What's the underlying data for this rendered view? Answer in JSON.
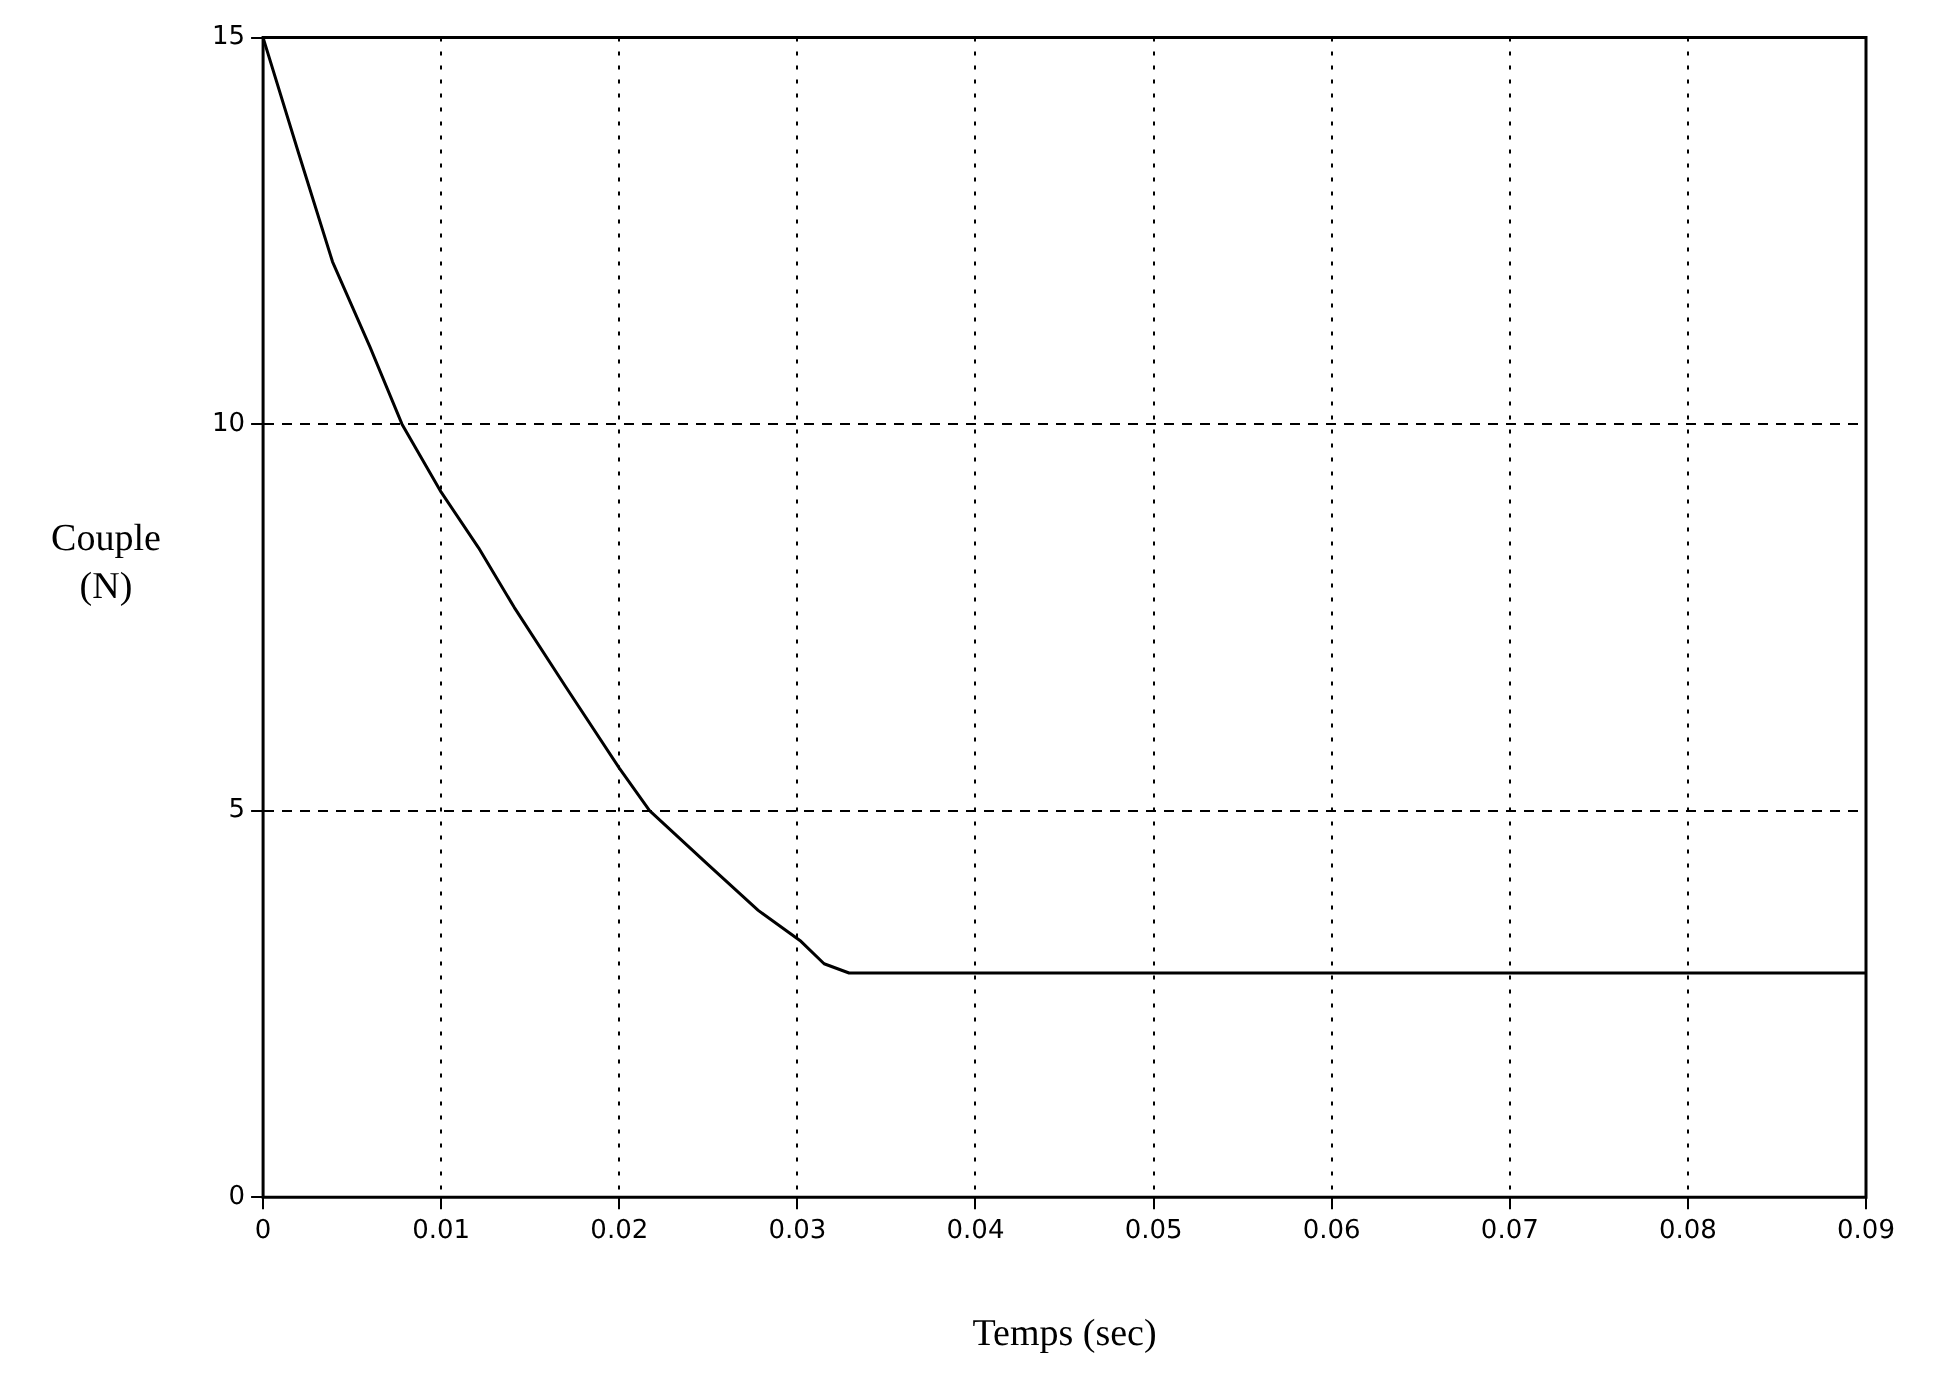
{
  "chart_data": {
    "type": "line",
    "xlabel": "Temps (sec)",
    "ylabel": "Couple\n(N)",
    "x": [
      0,
      0.002,
      0.0039,
      0.006,
      0.0078,
      0.01,
      0.0121,
      0.0141,
      0.017,
      0.02,
      0.0217,
      0.025,
      0.0278,
      0.0302,
      0.0315,
      0.0329,
      0.04,
      0.05,
      0.06,
      0.07,
      0.08,
      0.09
    ],
    "series": [
      {
        "color": "#000000",
        "values": [
          15,
          13.5,
          12.1,
          11.0,
          10,
          9.12,
          8.4,
          7.63,
          6.6,
          5.55,
          5,
          4.3,
          3.71,
          3.31,
          3.02,
          2.9,
          2.9,
          2.9,
          2.9,
          2.9,
          2.9,
          2.9
        ]
      }
    ],
    "xlim": [
      0,
      0.09
    ],
    "xticks": [
      0,
      0.01,
      0.02,
      0.03,
      0.04,
      0.05,
      0.06,
      0.07,
      0.08,
      0.09
    ],
    "ylim": [
      0,
      15
    ],
    "yticks": [
      0,
      5,
      10,
      15
    ],
    "grid": true,
    "legend": false,
    "marker": "none",
    "line_style": "solid"
  }
}
